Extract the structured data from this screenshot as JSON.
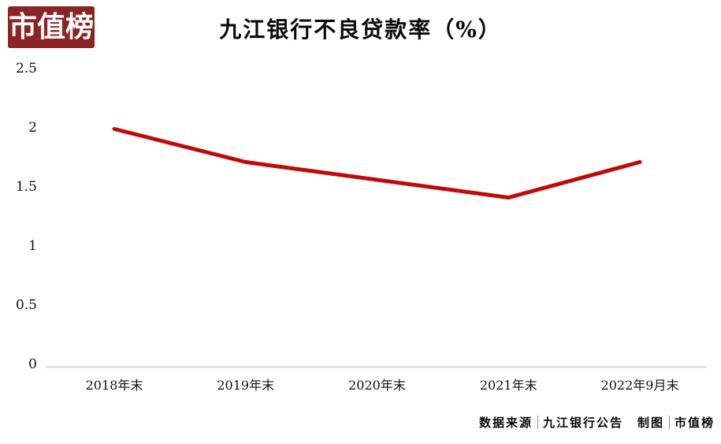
{
  "brand": {
    "logo_text": "市值榜",
    "logo_bg_color": "#8B2424",
    "logo_text_color": "#FFFFFF"
  },
  "chart_data": {
    "type": "line",
    "title": "九江银行不良贷款率（%）",
    "unit": "%",
    "categories": [
      "2018年末",
      "2019年末",
      "2020年末",
      "2021年末",
      "2022年9月末"
    ],
    "series": [
      {
        "name": "不良贷款率",
        "values": [
          1.99,
          1.71,
          1.56,
          1.41,
          1.71
        ]
      }
    ],
    "yticks": [
      0,
      0.5,
      1,
      1.5,
      2,
      2.5
    ],
    "ylim": [
      0,
      2.5
    ],
    "xlabel": "",
    "ylabel": "",
    "grid": false,
    "legend_position": "none",
    "line_color": "#C00A0A",
    "axis_color": "#D8D8D8"
  },
  "footer": {
    "source_label": "数据来源",
    "source_value": "九江银行公告",
    "credit_label": "制图",
    "credit_value": "市值榜"
  }
}
